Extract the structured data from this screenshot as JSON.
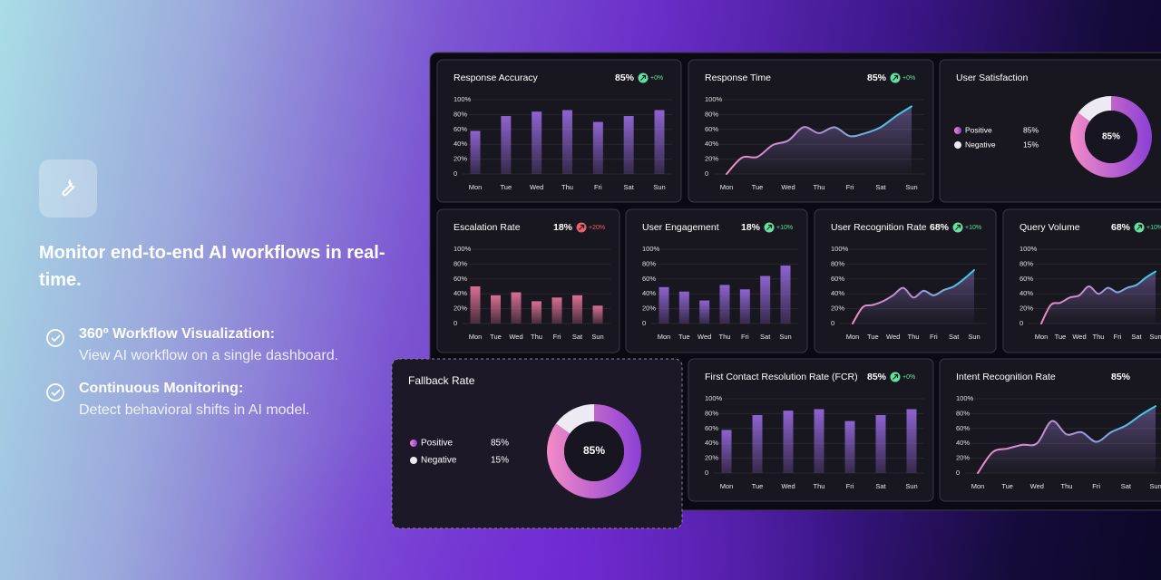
{
  "hero": {
    "title": "Monitor end-to-end AI workflows in real-time.",
    "features": [
      {
        "title": "360º Workflow Visualization:",
        "text": "View AI workflow on a single dashboard."
      },
      {
        "title": "Continuous Monitoring:",
        "text": "Detect behavioral shifts in AI model."
      }
    ]
  },
  "axis": {
    "ylim": [
      0,
      100
    ],
    "yticks": [
      {
        "value": 100,
        "label": "100%"
      },
      {
        "value": 80,
        "label": "80%"
      },
      {
        "value": 60,
        "label": "60%"
      },
      {
        "value": 40,
        "label": "40%"
      },
      {
        "value": 20,
        "label": "20%"
      },
      0
    ]
  },
  "panels": [
    {
      "title": "Response Accuracy",
      "value": "85%",
      "change": "+0%",
      "change_color": "#5fe3a1",
      "type": "bar",
      "color": "#8e63cf",
      "categories": [
        "Mon",
        "Tue",
        "Wed",
        "Thu",
        "Fri",
        "Sat",
        "Sun"
      ],
      "values": [
        58,
        78,
        84,
        86,
        70,
        78,
        86
      ]
    },
    {
      "title": "Response Time",
      "value": "85%",
      "change": "+0%",
      "change_color": "#5fe3a1",
      "type": "line",
      "colors": [
        "#f08cc4",
        "#b28fd9",
        "#2ed3ea"
      ],
      "categories": [
        "Mon",
        null,
        "Tue",
        null,
        "Wed",
        null,
        "Thu",
        null,
        "Fri",
        null,
        "Sat",
        null,
        "Sun"
      ],
      "values": [
        0,
        22,
        23,
        39,
        45,
        63,
        55,
        63,
        51,
        55,
        63,
        78,
        91
      ]
    },
    {
      "title": "User Satisfaction",
      "type": "donut",
      "center_label": "85%",
      "series": [
        {
          "name": "Positive",
          "value": 85,
          "label": "85%",
          "color": "#a45ee0"
        },
        {
          "name": "Negative",
          "value": 15,
          "label": "15%",
          "color": "#eeeaf3"
        }
      ]
    },
    {
      "title": "Escalation Rate",
      "value": "18%",
      "change": "+20%",
      "change_color": "#f0606b",
      "type": "bar",
      "color": "#d86f93",
      "categories": [
        "Mon",
        "Tue",
        "Wed",
        "Thu",
        "Fri",
        "Sat",
        "Sun"
      ],
      "values": [
        50,
        38,
        42,
        30,
        35,
        38,
        24
      ]
    },
    {
      "title": "User Engagement",
      "value": "18%",
      "change": "+10%",
      "change_color": "#5fe3a1",
      "type": "bar",
      "color": "#8e63cf",
      "categories": [
        "Mon",
        "Tue",
        "Wed",
        "Thu",
        "Fri",
        "Sat",
        "Sun"
      ],
      "values": [
        49,
        43,
        31,
        52,
        46,
        64,
        78
      ]
    },
    {
      "title": "User Recognition Rate",
      "value": "68%",
      "change": "+10%",
      "change_color": "#5fe3a1",
      "type": "line",
      "colors": [
        "#f08cc4",
        "#b28fd9",
        "#2ed3ea"
      ],
      "categories": [
        "Mon",
        null,
        "Tue",
        null,
        "Wed",
        null,
        "Thu",
        null,
        "Fri",
        null,
        "Sat",
        null,
        "Sun"
      ],
      "values": [
        0,
        22,
        25,
        30,
        38,
        48,
        35,
        44,
        38,
        45,
        50,
        60,
        72
      ]
    },
    {
      "title": "Query Volume",
      "value": "68%",
      "change": "+10%",
      "change_color": "#5fe3a1",
      "type": "line",
      "colors": [
        "#f08cc4",
        "#b28fd9",
        "#2ed3ea"
      ],
      "categories": [
        "Mon",
        null,
        "Tue",
        null,
        "Wed",
        null,
        "Thu",
        null,
        "Fri",
        null,
        "Sat",
        null,
        "Sun"
      ],
      "values": [
        0,
        25,
        28,
        35,
        38,
        50,
        40,
        48,
        42,
        48,
        52,
        62,
        70
      ]
    },
    {
      "title": "Fallback Rate",
      "type": "donut",
      "center_label": "85%",
      "series": [
        {
          "name": "Positive",
          "value": 85,
          "label": "85%",
          "color": "#a45ee0"
        },
        {
          "name": "Negative",
          "value": 15,
          "label": "15%",
          "color": "#eeeaf3"
        }
      ]
    },
    {
      "title": "First Contact Resolution Rate (FCR)",
      "value": "85%",
      "change": "+0%",
      "change_color": "#5fe3a1",
      "type": "bar",
      "color": "#8e63cf",
      "categories": [
        "Mon",
        "Tue",
        "Wed",
        "Thu",
        "Fri",
        "Sat",
        "Sun"
      ],
      "values": [
        58,
        78,
        84,
        86,
        70,
        78,
        86
      ]
    },
    {
      "title": "Intent Recognition Rate",
      "value": "85%",
      "type": "line",
      "colors": [
        "#f08cc4",
        "#b28fd9",
        "#2ed3ea"
      ],
      "categories": [
        "Mon",
        null,
        "Tue",
        null,
        "Wed",
        null,
        "Thu",
        null,
        "Fri",
        null,
        "Sat",
        null,
        "Sun"
      ],
      "values": [
        0,
        28,
        33,
        38,
        40,
        70,
        52,
        55,
        42,
        55,
        64,
        78,
        90
      ]
    }
  ]
}
